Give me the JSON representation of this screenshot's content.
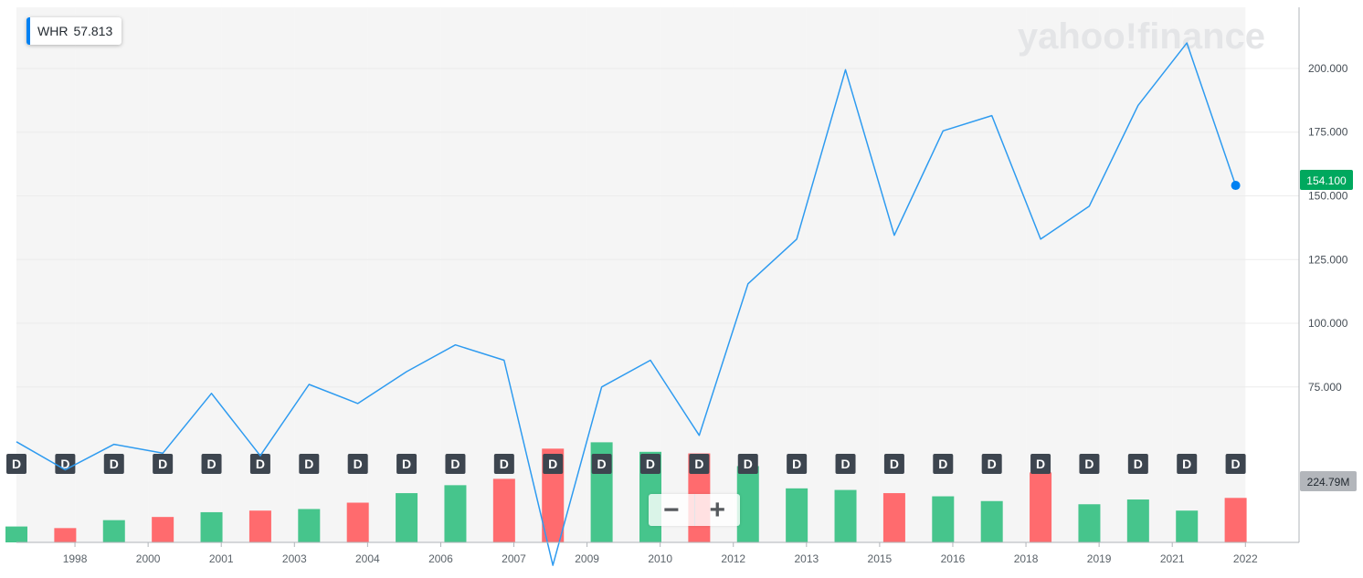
{
  "ticker": {
    "symbol": "WHR",
    "value": "57.813",
    "accent_color": "#0081f2"
  },
  "watermark": "yahoo!finance",
  "zoom": {
    "minus_label": "−",
    "plus_label": "+"
  },
  "badges": {
    "price": "154.100",
    "volume": "224.79M",
    "price_color": "#00a85e",
    "volume_color": "#b3b6bb"
  },
  "colors": {
    "line": "#2e9bf0",
    "up_bar": "#46c58c",
    "down_bar": "#ff6b6e",
    "event_marker": "#3d454f"
  },
  "chart_data": {
    "type": "line",
    "line_series": {
      "x": [
        1997.0,
        1998.0,
        1999.0,
        2000.0,
        2001.0,
        2002.0,
        2003.0,
        2004.0,
        2005.0,
        2006.0,
        2007.0,
        2008.0,
        2009.0,
        2010.0,
        2011.0,
        2012.0,
        2013.0,
        2014.0,
        2015.0,
        2016.0,
        2017.0,
        2018.0,
        2019.0,
        2020.0,
        2021.0,
        2022.0
      ],
      "values": [
        53.5,
        42.5,
        52.5,
        49,
        72.5,
        48,
        76,
        68.5,
        81,
        91.5,
        85.5,
        5,
        75,
        85.5,
        56,
        115.5,
        133,
        199.5,
        134.5,
        175.5,
        181.5,
        133,
        146,
        185.5,
        210,
        154.1
      ]
    },
    "volume_bars": {
      "direction": [
        "up",
        "down",
        "up",
        "down",
        "up",
        "down",
        "up",
        "down",
        "up",
        "up",
        "down",
        "down",
        "up",
        "up",
        "down",
        "up",
        "up",
        "up",
        "down",
        "up",
        "up",
        "down",
        "up",
        "up",
        "up",
        "down"
      ],
      "relative_height": [
        0.1,
        0.09,
        0.14,
        0.16,
        0.19,
        0.2,
        0.21,
        0.25,
        0.31,
        0.36,
        0.4,
        0.59,
        0.63,
        0.57,
        0.56,
        0.48,
        0.34,
        0.33,
        0.31,
        0.29,
        0.26,
        0.44,
        0.24,
        0.27,
        0.2,
        0.28
      ]
    },
    "event_markers": {
      "label": "D",
      "x": [
        1997.0,
        1998.0,
        1999.0,
        2000.0,
        2001.0,
        2002.0,
        2003.0,
        2004.0,
        2005.0,
        2006.0,
        2007.0,
        2008.0,
        2009.0,
        2010.0,
        2011.0,
        2012.0,
        2013.0,
        2014.0,
        2015.0,
        2016.0,
        2017.0,
        2018.0,
        2019.0,
        2020.0,
        2021.0,
        2022.0
      ]
    },
    "x_axis_ticks": [
      {
        "label": "1998",
        "x": 1998.2
      },
      {
        "label": "2000",
        "x": 1999.7
      },
      {
        "label": "2001",
        "x": 2001.2
      },
      {
        "label": "2003",
        "x": 2002.7
      },
      {
        "label": "2004",
        "x": 2004.2
      },
      {
        "label": "2006",
        "x": 2005.7
      },
      {
        "label": "2007",
        "x": 2007.2
      },
      {
        "label": "2009",
        "x": 2008.7
      },
      {
        "label": "2010",
        "x": 2010.2
      },
      {
        "label": "2012",
        "x": 2011.7
      },
      {
        "label": "2013",
        "x": 2013.2
      },
      {
        "label": "2015",
        "x": 2014.7
      },
      {
        "label": "2016",
        "x": 2016.2
      },
      {
        "label": "2018",
        "x": 2017.7
      },
      {
        "label": "2019",
        "x": 2019.2
      },
      {
        "label": "2021",
        "x": 2020.7
      },
      {
        "label": "2022",
        "x": 2022.2
      }
    ],
    "y_axis_ticks": [
      "200.000",
      "175.000",
      "150.000",
      "125.000",
      "100.000",
      "75.000"
    ],
    "y_tick_values": [
      200,
      175,
      150,
      125,
      100,
      75
    ],
    "ylim": [
      14,
      224
    ],
    "xlim": [
      1997.0,
      2023.3
    ],
    "grid": true
  }
}
